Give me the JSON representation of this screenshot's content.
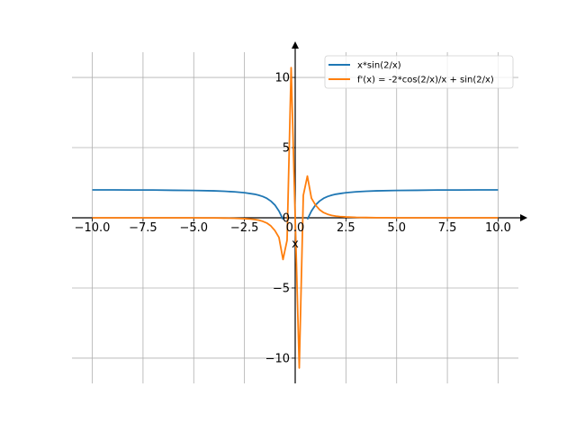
{
  "chart_data": {
    "type": "line",
    "title": "",
    "xlabel": "x",
    "ylabel": "",
    "xlim": [
      -11,
      11
    ],
    "ylim": [
      -11.8,
      11.8
    ],
    "x_ticks": [
      -10,
      -7.5,
      -5,
      -2.5,
      0,
      2.5,
      5,
      7.5,
      10
    ],
    "x_tick_labels": [
      "−10.0",
      "−7.5",
      "−5.0",
      "−2.5",
      "0.0",
      "2.5",
      "5.0",
      "7.5",
      "10.0"
    ],
    "y_ticks": [
      -10,
      -5,
      0,
      5,
      10
    ],
    "y_tick_labels": [
      "−10",
      "−5",
      "0",
      "5",
      "10"
    ],
    "grid": true,
    "legend_position": "top-right",
    "series": [
      {
        "name": "x*sin(2/x)",
        "color": "#1f77b4",
        "x": [
          -10,
          -9,
          -8,
          -7,
          -6,
          -5,
          -4,
          -3.5,
          -3,
          -2.5,
          -2,
          -1.8,
          -1.6,
          -1.4,
          -1.2,
          -1.0,
          -0.8,
          -0.6,
          0.6,
          0.8,
          1.0,
          1.2,
          1.4,
          1.6,
          1.8,
          2,
          2.5,
          3,
          3.5,
          4,
          5,
          6,
          7,
          8,
          9,
          10
        ],
        "y": [
          1.99,
          1.99,
          1.98,
          1.98,
          1.96,
          1.95,
          1.92,
          1.89,
          1.85,
          1.79,
          1.68,
          1.61,
          1.52,
          1.39,
          1.19,
          0.91,
          0.48,
          -0.11,
          -0.11,
          0.48,
          0.91,
          1.19,
          1.39,
          1.52,
          1.61,
          1.68,
          1.79,
          1.85,
          1.89,
          1.92,
          1.95,
          1.96,
          1.98,
          1.98,
          1.99,
          1.99
        ]
      },
      {
        "name": "f'(x) = -2*cos(2/x)/x + sin(2/x)",
        "color": "#ff7f0e",
        "x": [
          -10,
          -9,
          -8,
          -7,
          -6,
          -5,
          -4.5,
          -4,
          -3.5,
          -3,
          -2.5,
          -2.2,
          -2,
          -1.8,
          -1.6,
          -1.4,
          -1.2,
          -1.0,
          -0.8,
          -0.6,
          -0.4,
          -0.2,
          0.2,
          0.4,
          0.6,
          0.8,
          1.0,
          1.2,
          1.4,
          1.6,
          1.8,
          2,
          2.2,
          2.5,
          3,
          3.5,
          4,
          4.5,
          5,
          6,
          7,
          8,
          9,
          10
        ],
        "y": [
          0,
          0,
          0,
          0,
          0,
          0,
          -0.01,
          -0.01,
          -0.02,
          -0.03,
          -0.06,
          -0.09,
          -0.12,
          -0.17,
          -0.25,
          -0.37,
          -0.58,
          -0.91,
          -1.4,
          -2.97,
          -1.6,
          10.7,
          -10.7,
          1.6,
          2.97,
          1.4,
          0.91,
          0.58,
          0.37,
          0.25,
          0.17,
          0.12,
          0.09,
          0.06,
          0.03,
          0.02,
          0.01,
          0.01,
          0,
          0,
          0,
          0,
          0,
          0
        ]
      }
    ]
  }
}
